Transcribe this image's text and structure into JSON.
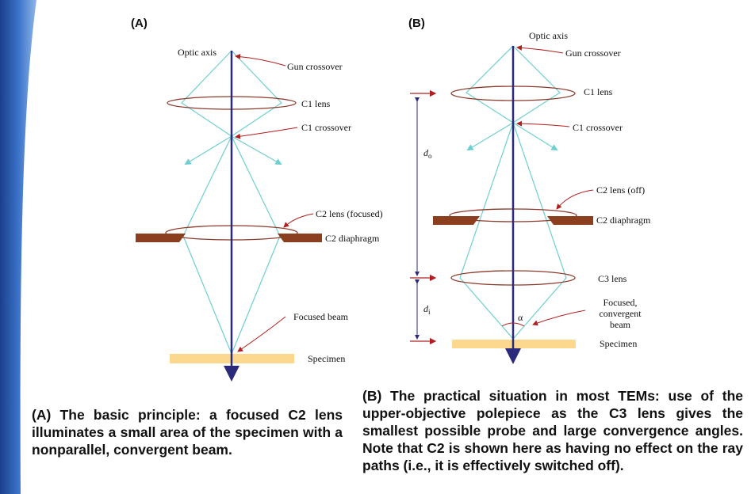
{
  "panels": {
    "a": "(A)",
    "b": "(B)"
  },
  "diagram_a": {
    "optic_axis": "Optic axis",
    "gun_crossover": "Gun crossover",
    "c1_lens": "C1 lens",
    "c1_crossover": "C1 crossover",
    "c2_lens": "C2 lens (focused)",
    "c2_diaphragm": "C2 diaphragm",
    "focused_beam": "Focused beam",
    "specimen": "Specimen"
  },
  "diagram_b": {
    "optic_axis": "Optic axis",
    "gun_crossover": "Gun crossover",
    "c1_lens": "C1 lens",
    "c1_crossover": "C1 crossover",
    "c2_lens": "C2 lens (off)",
    "c2_diaphragm": "C2 diaphragm",
    "c3_lens": "C3 lens",
    "beam_line1": "Focused,",
    "beam_line2": "convergent",
    "beam_line3": "beam",
    "specimen": "Specimen",
    "d_o_base": "d",
    "d_o_sub": "o",
    "d_i_base": "d",
    "d_i_sub": "i",
    "alpha": "α"
  },
  "captions": {
    "a": "(A) The basic principle: a focused C2 lens illuminates a small area of the specimen with a nonparallel, convergent beam.",
    "b": "(B) The practical situation in most TEMs: use of the upper-objective polepiece as the C3 lens gives the smallest possible probe and large convergence angles. Note that C2 is shown here as having no effect on the ray paths (i.e., it is effectively switched off)."
  },
  "colors": {
    "sidebar": "#2f5fb0",
    "axis": "#2b2a7a",
    "ray": "#6fcfcf",
    "lens": "#8a3a2a",
    "diaphragm": "#8b3f1f",
    "specimen": "#fcd88e",
    "pointer": "#b02020"
  }
}
